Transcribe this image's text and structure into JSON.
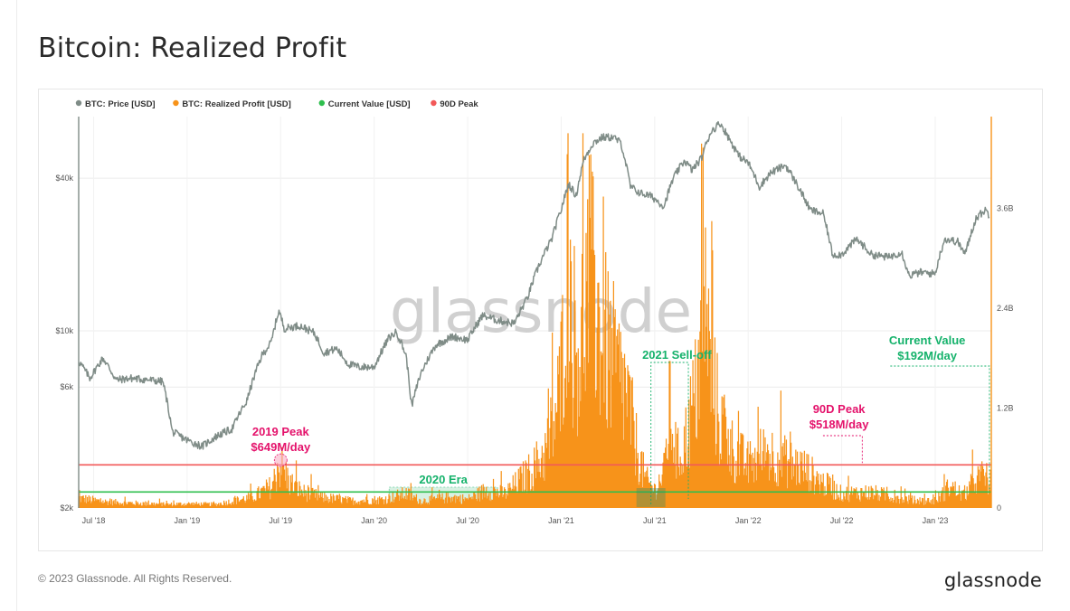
{
  "page": {
    "title": "Bitcoin: Realized Profit",
    "copyright": "© 2023 Glassnode. All Rights Reserved.",
    "brand": "glassnode",
    "watermark": "glassnode"
  },
  "colors": {
    "price": "#7f8c87",
    "profit": "#f7931a",
    "current": "#2fbf4e",
    "peak": "#f25858",
    "annotation_pink": "#e4126b",
    "annotation_green": "#15b26b",
    "highlight_green": "#bfe9d2"
  },
  "chart_data": {
    "type": "line",
    "title": "Bitcoin: Realized Profit",
    "legend": [
      {
        "label": "BTC: Price [USD]",
        "color": "#7f8c87"
      },
      {
        "label": "BTC: Realized Profit [USD]",
        "color": "#f7931a"
      },
      {
        "label": "Current Value [USD]",
        "color": "#2fbf4e"
      },
      {
        "label": "90D Peak",
        "color": "#f25858"
      }
    ],
    "x_range": [
      2018.42,
      2023.3
    ],
    "x_ticks": [
      {
        "label": "Jul '18",
        "t": 2018.5
      },
      {
        "label": "Jan '19",
        "t": 2019.0
      },
      {
        "label": "Jul '19",
        "t": 2019.5
      },
      {
        "label": "Jan '20",
        "t": 2020.0
      },
      {
        "label": "Jul '20",
        "t": 2020.5
      },
      {
        "label": "Jan '21",
        "t": 2021.0
      },
      {
        "label": "Jul '21",
        "t": 2021.5
      },
      {
        "label": "Jan '22",
        "t": 2022.0
      },
      {
        "label": "Jul '22",
        "t": 2022.5
      },
      {
        "label": "Jan '23",
        "t": 2023.0
      }
    ],
    "left_axis": {
      "scale": "log",
      "unit": "USD",
      "range": [
        2000,
        70000
      ],
      "ticks": [
        {
          "label": "$2k",
          "value": 2000
        },
        {
          "label": "$6k",
          "value": 6000
        },
        {
          "label": "$10k",
          "value": 10000
        },
        {
          "label": "$40k",
          "value": 40000
        }
      ]
    },
    "right_axis": {
      "scale": "linear",
      "unit": "USD",
      "range": [
        0,
        4.7
      ],
      "ticks": [
        {
          "label": "0",
          "value": 0
        },
        {
          "label": "1.2B",
          "value": 1.2
        },
        {
          "label": "2.4B",
          "value": 2.4
        },
        {
          "label": "3.6B",
          "value": 3.6
        }
      ]
    },
    "series": [
      {
        "name": "BTC: Price [USD]",
        "axis": "left",
        "points": [
          [
            2018.42,
            7600
          ],
          [
            2018.48,
            6500
          ],
          [
            2018.55,
            7800
          ],
          [
            2018.62,
            6400
          ],
          [
            2018.7,
            6500
          ],
          [
            2018.8,
            6400
          ],
          [
            2018.87,
            6300
          ],
          [
            2018.92,
            4000
          ],
          [
            2019.0,
            3700
          ],
          [
            2019.08,
            3500
          ],
          [
            2019.16,
            3850
          ],
          [
            2019.24,
            4100
          ],
          [
            2019.32,
            5300
          ],
          [
            2019.4,
            8000
          ],
          [
            2019.45,
            9000
          ],
          [
            2019.49,
            12000
          ],
          [
            2019.52,
            10200
          ],
          [
            2019.6,
            10500
          ],
          [
            2019.68,
            9800
          ],
          [
            2019.73,
            8200
          ],
          [
            2019.8,
            8500
          ],
          [
            2019.86,
            7400
          ],
          [
            2019.92,
            7200
          ],
          [
            2020.0,
            7200
          ],
          [
            2020.08,
            9400
          ],
          [
            2020.12,
            9900
          ],
          [
            2020.17,
            8000
          ],
          [
            2020.2,
            5000
          ],
          [
            2020.25,
            6800
          ],
          [
            2020.33,
            8800
          ],
          [
            2020.42,
            9500
          ],
          [
            2020.5,
            9200
          ],
          [
            2020.58,
            11500
          ],
          [
            2020.66,
            11000
          ],
          [
            2020.75,
            10700
          ],
          [
            2020.82,
            13500
          ],
          [
            2020.88,
            18000
          ],
          [
            2020.95,
            23000
          ],
          [
            2021.0,
            30000
          ],
          [
            2021.04,
            38000
          ],
          [
            2021.08,
            34000
          ],
          [
            2021.12,
            47000
          ],
          [
            2021.17,
            55000
          ],
          [
            2021.22,
            58000
          ],
          [
            2021.28,
            58000
          ],
          [
            2021.32,
            55000
          ],
          [
            2021.37,
            37000
          ],
          [
            2021.42,
            35000
          ],
          [
            2021.48,
            34000
          ],
          [
            2021.55,
            31000
          ],
          [
            2021.6,
            40000
          ],
          [
            2021.66,
            47000
          ],
          [
            2021.7,
            43000
          ],
          [
            2021.75,
            48000
          ],
          [
            2021.8,
            61000
          ],
          [
            2021.85,
            66000
          ],
          [
            2021.9,
            57000
          ],
          [
            2021.95,
            49000
          ],
          [
            2022.0,
            46000
          ],
          [
            2022.06,
            37000
          ],
          [
            2022.12,
            42000
          ],
          [
            2022.2,
            45000
          ],
          [
            2022.25,
            39000
          ],
          [
            2022.33,
            30000
          ],
          [
            2022.4,
            29000
          ],
          [
            2022.45,
            20000
          ],
          [
            2022.5,
            20000
          ],
          [
            2022.58,
            23000
          ],
          [
            2022.66,
            20000
          ],
          [
            2022.75,
            19500
          ],
          [
            2022.82,
            20500
          ],
          [
            2022.86,
            16500
          ],
          [
            2022.92,
            17000
          ],
          [
            2023.0,
            16800
          ],
          [
            2023.05,
            23000
          ],
          [
            2023.12,
            22500
          ],
          [
            2023.16,
            20000
          ],
          [
            2023.22,
            28000
          ],
          [
            2023.27,
            30000
          ],
          [
            2023.29,
            28500
          ]
        ]
      },
      {
        "name": "BTC: Realized Profit [USD]",
        "axis": "right",
        "unit": "B USD/day",
        "points": [
          [
            2018.42,
            0.14
          ],
          [
            2018.55,
            0.09
          ],
          [
            2018.7,
            0.07
          ],
          [
            2018.9,
            0.05
          ],
          [
            2019.0,
            0.06
          ],
          [
            2019.15,
            0.05
          ],
          [
            2019.35,
            0.15
          ],
          [
            2019.45,
            0.3
          ],
          [
            2019.48,
            0.48
          ],
          [
            2019.5,
            0.62
          ],
          [
            2019.55,
            0.35
          ],
          [
            2019.62,
            0.22
          ],
          [
            2019.72,
            0.15
          ],
          [
            2019.88,
            0.1
          ],
          [
            2020.05,
            0.12
          ],
          [
            2020.17,
            0.2
          ],
          [
            2020.25,
            0.1
          ],
          [
            2020.42,
            0.15
          ],
          [
            2020.5,
            0.12
          ],
          [
            2020.6,
            0.25
          ],
          [
            2020.7,
            0.2
          ],
          [
            2020.85,
            0.55
          ],
          [
            2020.92,
            0.8
          ],
          [
            2020.97,
            1.3
          ],
          [
            2021.0,
            1.8
          ],
          [
            2021.02,
            3.1
          ],
          [
            2021.04,
            3.9
          ],
          [
            2021.06,
            2.5
          ],
          [
            2021.1,
            2.3
          ],
          [
            2021.15,
            3.3
          ],
          [
            2021.2,
            2.6
          ],
          [
            2021.25,
            2.2
          ],
          [
            2021.3,
            1.9
          ],
          [
            2021.35,
            1.6
          ],
          [
            2021.4,
            0.9
          ],
          [
            2021.45,
            0.4
          ],
          [
            2021.5,
            0.25
          ],
          [
            2021.55,
            0.5
          ],
          [
            2021.58,
            1.4
          ],
          [
            2021.62,
            0.7
          ],
          [
            2021.66,
            0.9
          ],
          [
            2021.72,
            1.6
          ],
          [
            2021.77,
            2.8
          ],
          [
            2021.8,
            1.9
          ],
          [
            2021.85,
            1.2
          ],
          [
            2021.92,
            0.8
          ],
          [
            2022.0,
            0.6
          ],
          [
            2022.1,
            0.8
          ],
          [
            2022.2,
            0.65
          ],
          [
            2022.3,
            0.55
          ],
          [
            2022.4,
            0.35
          ],
          [
            2022.5,
            0.2
          ],
          [
            2022.65,
            0.22
          ],
          [
            2022.8,
            0.15
          ],
          [
            2022.9,
            0.1
          ],
          [
            2023.0,
            0.1
          ],
          [
            2023.08,
            0.3
          ],
          [
            2023.15,
            0.18
          ],
          [
            2023.22,
            0.4
          ],
          [
            2023.27,
            0.45
          ],
          [
            2023.29,
            0.35
          ]
        ]
      },
      {
        "name": "Current Value [USD]",
        "axis": "right",
        "value_musd_per_day": 192
      },
      {
        "name": "90D Peak",
        "axis": "right",
        "value_musd_per_day": 518
      }
    ],
    "annotations": {
      "peak_2019": {
        "line1": "2019 Peak",
        "line2": "$649M/day",
        "t": 2019.5,
        "value_b": 0.649
      },
      "era_2020": {
        "label": "2020 Era",
        "t_start": 2020.08,
        "t_end": 2020.66
      },
      "selloff_2021": {
        "label": "2021 Sell-off",
        "t_start": 2021.48,
        "t_end": 2021.68
      },
      "peak_90d": {
        "line1": "90D Peak",
        "line2": "$518M/day",
        "t_start": 2022.4,
        "t_end": 2022.61
      },
      "current_value": {
        "line1": "Current Value",
        "line2": "$192M/day",
        "t_start": 2022.76,
        "t_end": 2023.29
      }
    }
  }
}
